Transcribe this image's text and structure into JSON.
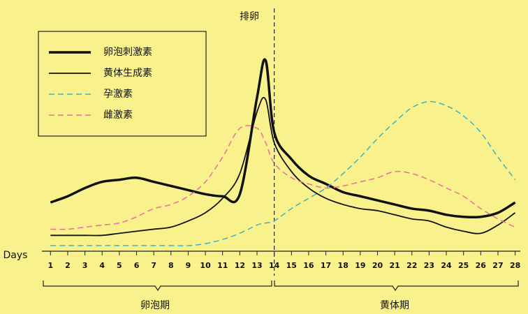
{
  "chart_data": {
    "type": "line",
    "annotation": "排卵",
    "x_label": "Days",
    "phases": [
      "卵泡期",
      "黄体期"
    ],
    "x": [
      1,
      2,
      3,
      4,
      5,
      6,
      7,
      8,
      9,
      10,
      11,
      12,
      13,
      13.5,
      14,
      15,
      16,
      17,
      18,
      19,
      20,
      21,
      22,
      23,
      24,
      25,
      26,
      27,
      28
    ],
    "xlim": [
      0.5,
      28.3
    ],
    "xticks": [
      1,
      2,
      3,
      4,
      5,
      6,
      7,
      8,
      9,
      10,
      11,
      12,
      13,
      14,
      15,
      16,
      17,
      18,
      19,
      20,
      21,
      22,
      23,
      24,
      25,
      26,
      27,
      28
    ],
    "ylim": [
      0,
      100
    ],
    "ovulation_day": 14,
    "legend": "upper left",
    "series": [
      {
        "name": "卵泡刺激素",
        "color": "#111111",
        "line_width": 3.5,
        "line_style": "solid",
        "values": [
          22,
          25,
          29,
          32,
          33,
          34,
          32,
          30,
          28,
          26,
          25,
          26,
          73,
          91,
          56,
          43,
          35,
          31,
          27,
          25,
          23,
          21,
          19,
          18,
          16,
          15,
          15,
          17,
          22
        ]
      },
      {
        "name": "黄体生成素",
        "color": "#111111",
        "line_width": 1.8,
        "line_style": "solid",
        "values": [
          6,
          6,
          6,
          6,
          7,
          8,
          9,
          10,
          13,
          17,
          24,
          36,
          66,
          72,
          51,
          37,
          29,
          24,
          21,
          19,
          18,
          16,
          14,
          13,
          10,
          8,
          7,
          11,
          17
        ]
      },
      {
        "name": "孕激素",
        "color": "#3ab3c6",
        "line_width": 1.5,
        "line_style": "dashed",
        "values": [
          1,
          1,
          1,
          1,
          1,
          1,
          1,
          1,
          1,
          2,
          4,
          7,
          11,
          12,
          13,
          19,
          24,
          29,
          36,
          44,
          53,
          61,
          68,
          71,
          69,
          64,
          56,
          44,
          33
        ]
      },
      {
        "name": "雌激素",
        "color": "#e5709c",
        "line_width": 1.5,
        "line_style": "dashed",
        "values": [
          9,
          9,
          10,
          11,
          12,
          15,
          19,
          21,
          25,
          32,
          44,
          58,
          58,
          51,
          41,
          34,
          31,
          29,
          30,
          32,
          34,
          37,
          36,
          33,
          29,
          25,
          19,
          14,
          10
        ]
      }
    ]
  }
}
